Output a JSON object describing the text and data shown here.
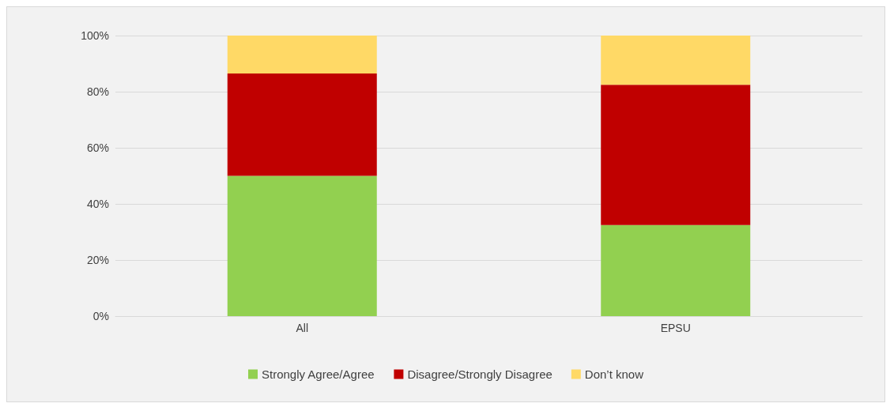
{
  "chart_data": {
    "type": "bar",
    "stacked": true,
    "categories": [
      "All",
      "EPSU"
    ],
    "series": [
      {
        "name": "Strongly Agree/Agree",
        "color": "#92d050",
        "values": [
          50,
          32.5
        ]
      },
      {
        "name": "Disagree/Strongly Disagree",
        "color": "#c00000",
        "values": [
          36.5,
          50
        ]
      },
      {
        "name": "Don’t know",
        "color": "#ffd966",
        "values": [
          13.5,
          17.5
        ]
      }
    ],
    "ylim": [
      0,
      100
    ],
    "yticks": [
      {
        "value": 0,
        "label": "0%"
      },
      {
        "value": 20,
        "label": "20%"
      },
      {
        "value": 40,
        "label": "40%"
      },
      {
        "value": 60,
        "label": "60%"
      },
      {
        "value": 80,
        "label": "80%"
      },
      {
        "value": 100,
        "label": "100%"
      }
    ],
    "grid": "y",
    "legend": "bottom"
  }
}
